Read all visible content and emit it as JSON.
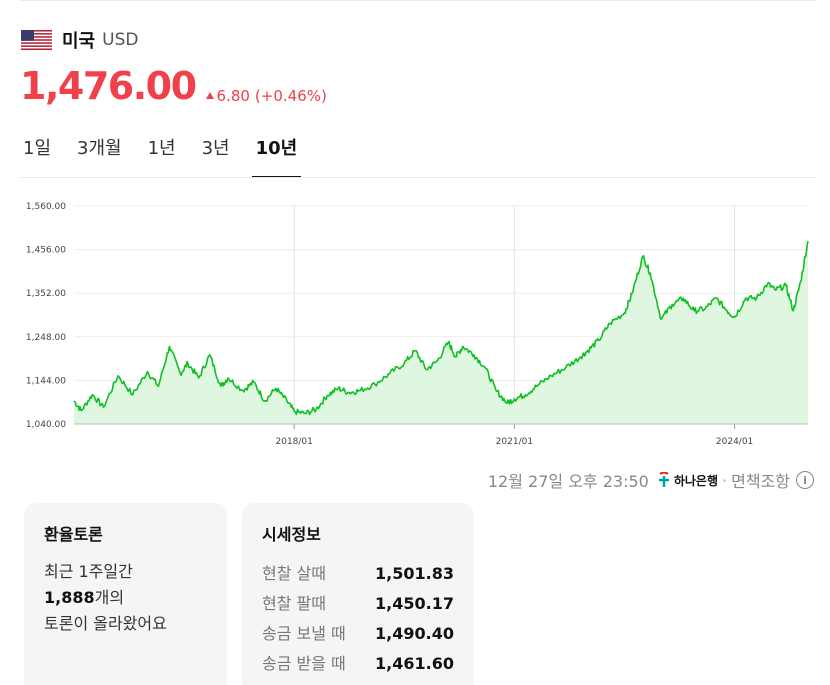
{
  "header": {
    "country": "미국",
    "currency": "USD"
  },
  "quote": {
    "price": "1,476.00",
    "change": "6.80",
    "change_pct": "(+0.46%)",
    "direction": "up"
  },
  "tabs": [
    {
      "label": "1일",
      "active": false
    },
    {
      "label": "3개월",
      "active": false
    },
    {
      "label": "1년",
      "active": false
    },
    {
      "label": "3년",
      "active": false
    },
    {
      "label": "10년",
      "active": true
    }
  ],
  "chart_data": {
    "type": "area",
    "color": "#0fbf23",
    "fill": "#dff6e0",
    "ylim": [
      1040,
      1560
    ],
    "y_ticks": [
      1040,
      1144,
      1248,
      1352,
      1456,
      1560
    ],
    "y_tick_labels": [
      "1,040.00",
      "1,144.00",
      "1,248.00",
      "1,352.00",
      "1,456.00",
      "1,560.00"
    ],
    "x_range": [
      2015.0,
      2025.0
    ],
    "x_ticks": [
      2018.0,
      2021.0,
      2024.0
    ],
    "x_tick_labels": [
      "2018/01",
      "2021/01",
      "2024/01"
    ],
    "grid": true,
    "x": [
      2015.0,
      2015.1,
      2015.25,
      2015.4,
      2015.6,
      2015.8,
      2016.0,
      2016.15,
      2016.3,
      2016.45,
      2016.55,
      2016.7,
      2016.85,
      2017.0,
      2017.1,
      2017.3,
      2017.45,
      2017.6,
      2017.75,
      2017.9,
      2018.0,
      2018.15,
      2018.3,
      2018.45,
      2018.6,
      2018.75,
      2018.9,
      2019.1,
      2019.3,
      2019.5,
      2019.65,
      2019.8,
      2019.95,
      2020.1,
      2020.2,
      2020.3,
      2020.45,
      2020.6,
      2020.75,
      2020.9,
      2021.0,
      2021.15,
      2021.3,
      2021.5,
      2021.7,
      2021.9,
      2022.0,
      2022.15,
      2022.3,
      2022.5,
      2022.6,
      2022.75,
      2022.85,
      2023.0,
      2023.15,
      2023.3,
      2023.45,
      2023.6,
      2023.75,
      2023.9,
      2024.0,
      2024.15,
      2024.3,
      2024.45,
      2024.55,
      2024.7,
      2024.8,
      2024.9,
      2025.0
    ],
    "y": [
      1095,
      1072,
      1110,
      1080,
      1155,
      1110,
      1165,
      1130,
      1225,
      1160,
      1185,
      1150,
      1205,
      1130,
      1150,
      1120,
      1140,
      1095,
      1125,
      1095,
      1070,
      1065,
      1075,
      1108,
      1125,
      1115,
      1120,
      1135,
      1160,
      1185,
      1215,
      1170,
      1190,
      1235,
      1200,
      1225,
      1205,
      1175,
      1120,
      1090,
      1100,
      1110,
      1130,
      1155,
      1175,
      1200,
      1215,
      1240,
      1280,
      1305,
      1350,
      1440,
      1400,
      1290,
      1325,
      1340,
      1310,
      1315,
      1340,
      1310,
      1295,
      1340,
      1340,
      1375,
      1360,
      1370,
      1310,
      1380,
      1476
    ]
  },
  "source": {
    "timestamp": "12월 27일 오후 23:50",
    "bank": "하나은행",
    "separator": "·",
    "disclaimer": "면책조항"
  },
  "forum": {
    "title": "환율토론",
    "line1": "최근 1주일간",
    "count": "1,888",
    "count_unit": "개의",
    "line3": "토론이 올라왔어요"
  },
  "market_info": {
    "title": "시세정보",
    "rows": [
      {
        "label": "현찰 살때",
        "value": "1,501.83"
      },
      {
        "label": "현찰 팔때",
        "value": "1,450.17"
      },
      {
        "label": "송금 보낼 때",
        "value": "1,490.40"
      },
      {
        "label": "송금 받을 때",
        "value": "1,461.60"
      }
    ]
  }
}
